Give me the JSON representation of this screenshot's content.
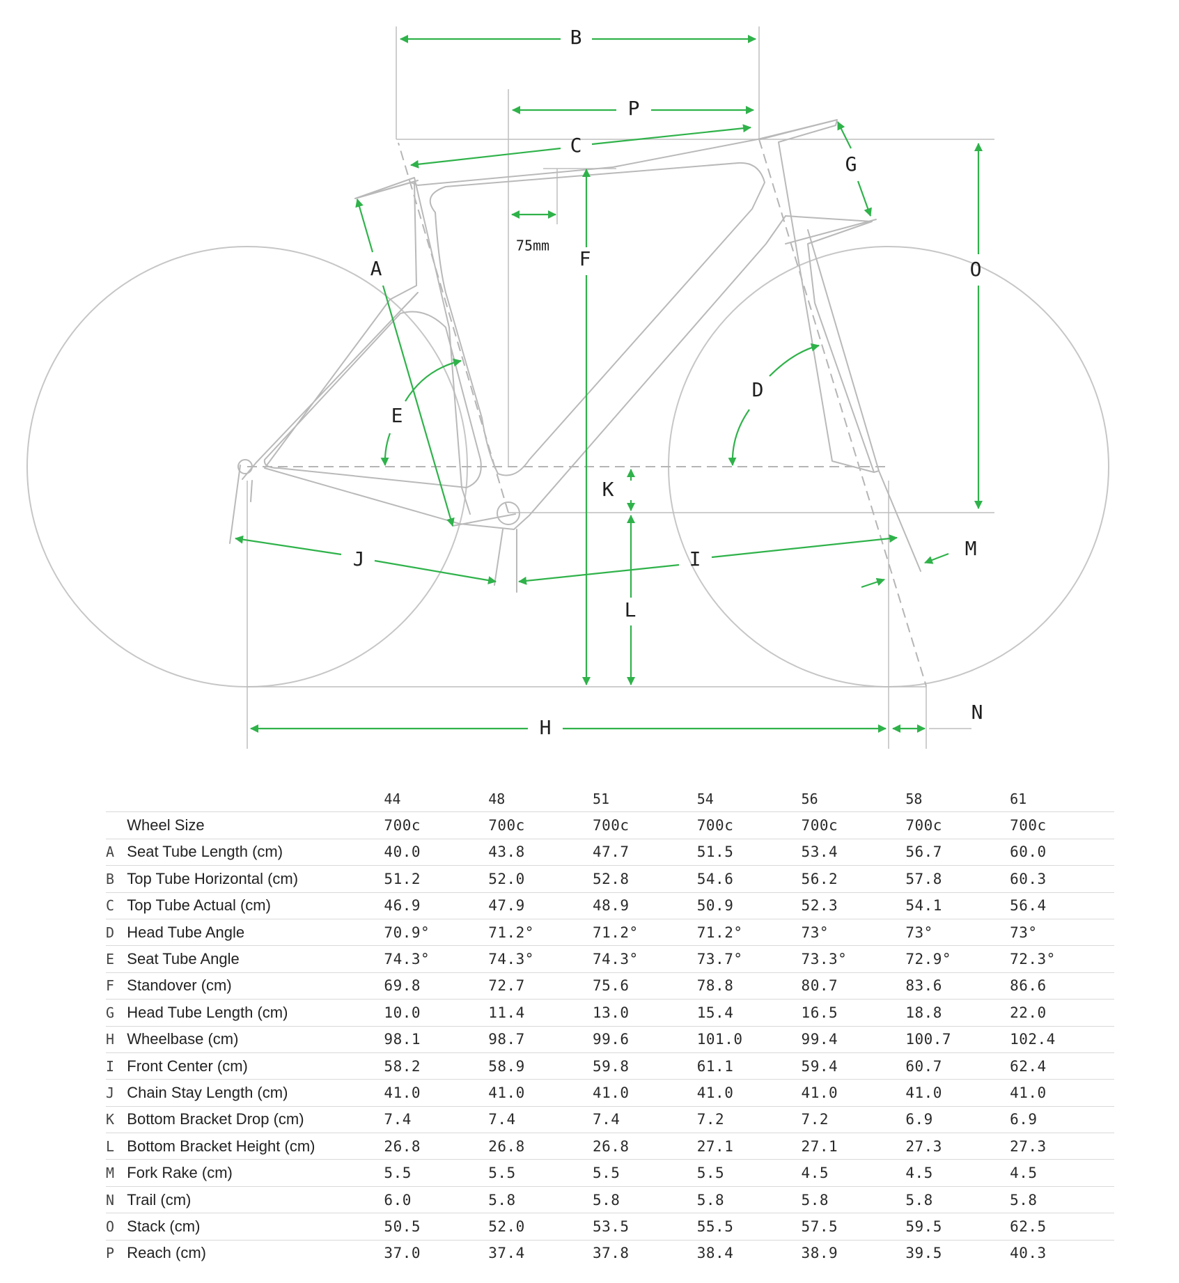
{
  "diagram": {
    "dimension_labels": {
      "A": "A",
      "B": "B",
      "C": "C",
      "D": "D",
      "E": "E",
      "F": "F",
      "G": "G",
      "H": "H",
      "I": "I",
      "J": "J",
      "K": "K",
      "L": "L",
      "M": "M",
      "N": "N",
      "O": "O",
      "P": "P"
    },
    "offset_note": "75mm",
    "colors": {
      "dimension": "#2fb24a",
      "frame": "#b9b9b9",
      "text": "#1e1e1e"
    }
  },
  "table": {
    "sizes": [
      "44",
      "48",
      "51",
      "54",
      "56",
      "58",
      "61"
    ],
    "rows": [
      {
        "letter": "",
        "label": "Wheel Size",
        "values": [
          "700c",
          "700c",
          "700c",
          "700c",
          "700c",
          "700c",
          "700c"
        ]
      },
      {
        "letter": "A",
        "label": "Seat Tube Length (cm)",
        "values": [
          "40.0",
          "43.8",
          "47.7",
          "51.5",
          "53.4",
          "56.7",
          "60.0"
        ]
      },
      {
        "letter": "B",
        "label": "Top Tube Horizontal (cm)",
        "values": [
          "51.2",
          "52.0",
          "52.8",
          "54.6",
          "56.2",
          "57.8",
          "60.3"
        ]
      },
      {
        "letter": "C",
        "label": "Top Tube Actual (cm)",
        "values": [
          "46.9",
          "47.9",
          "48.9",
          "50.9",
          "52.3",
          "54.1",
          "56.4"
        ]
      },
      {
        "letter": "D",
        "label": "Head Tube Angle",
        "values": [
          "70.9°",
          "71.2°",
          "71.2°",
          "71.2°",
          "73°",
          "73°",
          "73°"
        ]
      },
      {
        "letter": "E",
        "label": "Seat Tube Angle",
        "values": [
          "74.3°",
          "74.3°",
          "74.3°",
          "73.7°",
          "73.3°",
          "72.9°",
          "72.3°"
        ]
      },
      {
        "letter": "F",
        "label": "Standover (cm)",
        "values": [
          "69.8",
          "72.7",
          "75.6",
          "78.8",
          "80.7",
          "83.6",
          "86.6"
        ]
      },
      {
        "letter": "G",
        "label": "Head Tube Length (cm)",
        "values": [
          "10.0",
          "11.4",
          "13.0",
          "15.4",
          "16.5",
          "18.8",
          "22.0"
        ]
      },
      {
        "letter": "H",
        "label": "Wheelbase (cm)",
        "values": [
          "98.1",
          "98.7",
          "99.6",
          "101.0",
          "99.4",
          "100.7",
          "102.4"
        ]
      },
      {
        "letter": "I",
        "label": "Front Center (cm)",
        "values": [
          "58.2",
          "58.9",
          "59.8",
          "61.1",
          "59.4",
          "60.7",
          "62.4"
        ]
      },
      {
        "letter": "J",
        "label": "Chain Stay Length (cm)",
        "values": [
          "41.0",
          "41.0",
          "41.0",
          "41.0",
          "41.0",
          "41.0",
          "41.0"
        ]
      },
      {
        "letter": "K",
        "label": "Bottom Bracket Drop (cm)",
        "values": [
          "7.4",
          "7.4",
          "7.4",
          "7.2",
          "7.2",
          "6.9",
          "6.9"
        ]
      },
      {
        "letter": "L",
        "label": "Bottom Bracket Height (cm)",
        "values": [
          "26.8",
          "26.8",
          "26.8",
          "27.1",
          "27.1",
          "27.3",
          "27.3"
        ]
      },
      {
        "letter": "M",
        "label": "Fork Rake (cm)",
        "values": [
          "5.5",
          "5.5",
          "5.5",
          "5.5",
          "4.5",
          "4.5",
          "4.5"
        ]
      },
      {
        "letter": "N",
        "label": "Trail (cm)",
        "values": [
          "6.0",
          "5.8",
          "5.8",
          "5.8",
          "5.8",
          "5.8",
          "5.8"
        ]
      },
      {
        "letter": "O",
        "label": "Stack (cm)",
        "values": [
          "50.5",
          "52.0",
          "53.5",
          "55.5",
          "57.5",
          "59.5",
          "62.5"
        ]
      },
      {
        "letter": "P",
        "label": "Reach (cm)",
        "values": [
          "37.0",
          "37.4",
          "37.8",
          "38.4",
          "38.9",
          "39.5",
          "40.3"
        ]
      }
    ]
  }
}
